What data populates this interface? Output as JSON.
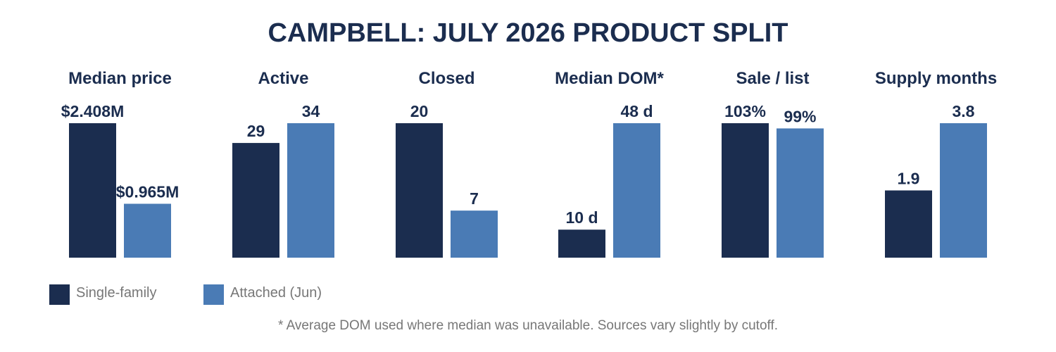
{
  "chart_data": {
    "type": "bar",
    "title": "CAMPBELL: JULY 2026 PRODUCT SPLIT",
    "colors": {
      "single_family": "#1b2d4f",
      "attached": "#4a7bb5"
    },
    "legend": {
      "placement": "bottom-left",
      "items": [
        {
          "label": "Single-family",
          "color": "#1b2d4f"
        },
        {
          "label": "Attached (Jun)",
          "color": "#4a7bb5"
        }
      ]
    },
    "footnote": "* Average DOM used where median was unavailable. Sources vary slightly by cutoff.",
    "panels": [
      {
        "title": "Median price",
        "values": [
          2.408,
          0.965
        ],
        "labels": [
          "$2.408M",
          "$0.965M"
        ]
      },
      {
        "title": "Active",
        "values": [
          29,
          34
        ],
        "labels": [
          "29",
          "34"
        ]
      },
      {
        "title": "Closed",
        "values": [
          20,
          7
        ],
        "labels": [
          "20",
          "7"
        ]
      },
      {
        "title": "Median DOM*",
        "values": [
          10,
          48
        ],
        "labels": [
          "10 d",
          "48 d"
        ]
      },
      {
        "title": "Sale / list",
        "values": [
          103,
          99
        ],
        "labels": [
          "103%",
          "99%"
        ]
      },
      {
        "title": "Supply months",
        "values": [
          1.9,
          3.8
        ],
        "labels": [
          "1.9",
          "3.8"
        ]
      }
    ]
  }
}
